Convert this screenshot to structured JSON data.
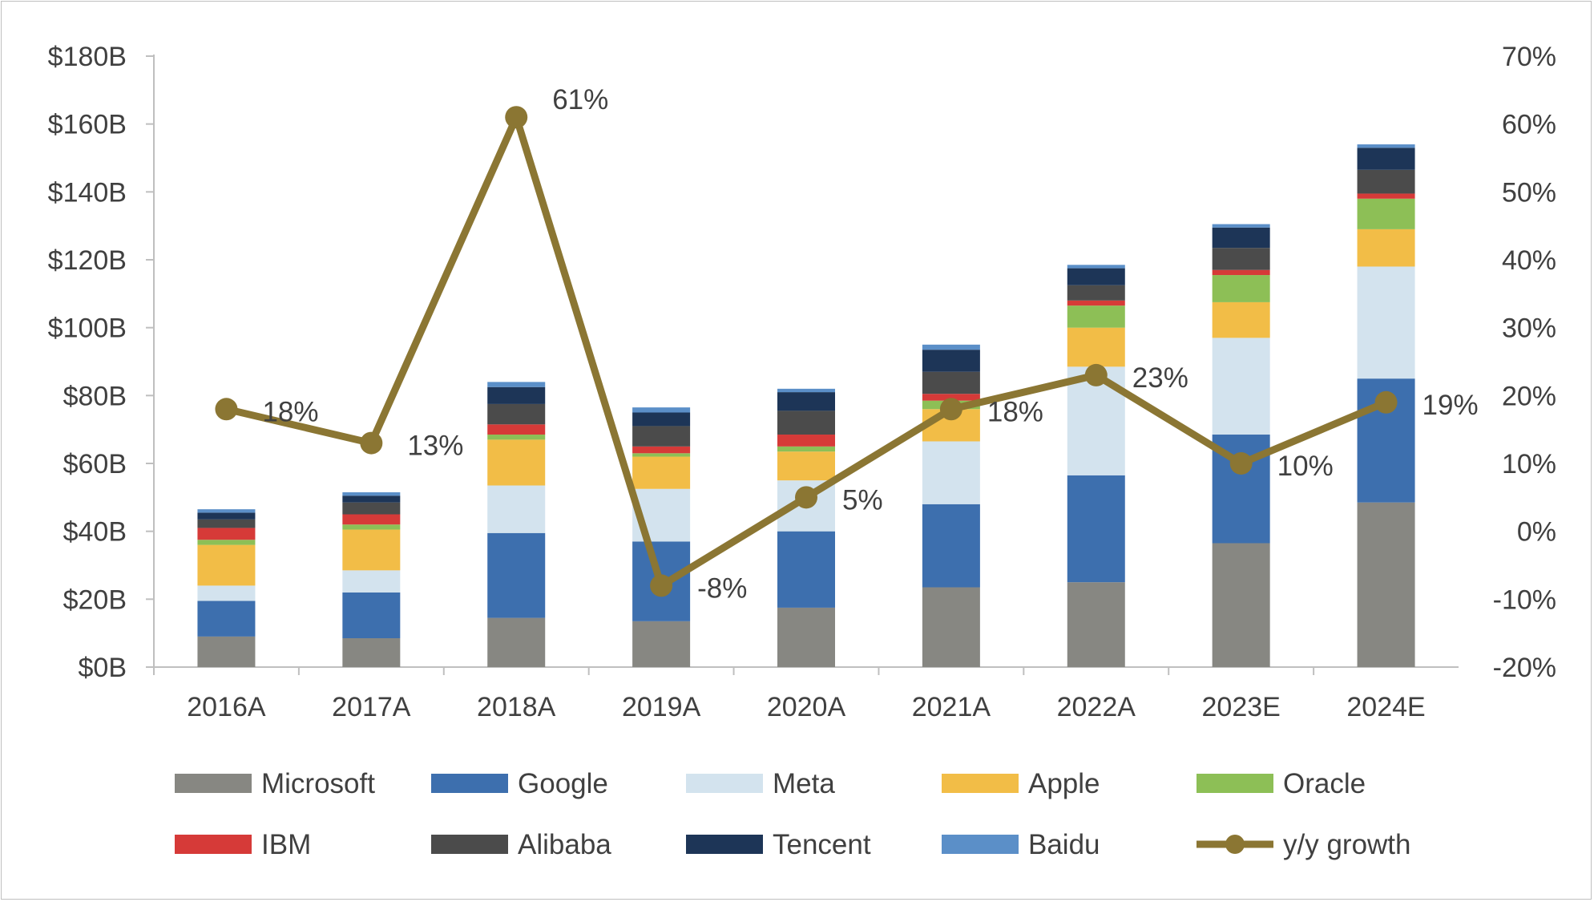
{
  "chart_data": {
    "type": "bar",
    "stacked": true,
    "title": "",
    "xlabel": "",
    "ylabel": "",
    "categories": [
      "2016A",
      "2017A",
      "2018A",
      "2019A",
      "2020A",
      "2021A",
      "2022A",
      "2023E",
      "2024E"
    ],
    "ylim": [
      0,
      180
    ],
    "y_ticks": [
      "$0B",
      "$20B",
      "$40B",
      "$60B",
      "$80B",
      "$100B",
      "$120B",
      "$140B",
      "$160B",
      "$180B"
    ],
    "y2lim": [
      -20,
      70
    ],
    "y2_ticks": [
      "-20%",
      "-10%",
      "0%",
      "10%",
      "20%",
      "30%",
      "40%",
      "50%",
      "60%",
      "70%"
    ],
    "series": [
      {
        "name": "Microsoft",
        "color": "#878782",
        "values": [
          9,
          8.5,
          14.5,
          13.5,
          17.5,
          23.5,
          25,
          36.5,
          48.5
        ]
      },
      {
        "name": "Google",
        "color": "#3d6fae",
        "values": [
          10.5,
          13.5,
          25,
          23.5,
          22.5,
          24.5,
          31.5,
          32,
          36.5
        ]
      },
      {
        "name": "Meta",
        "color": "#d3e3ee",
        "values": [
          4.5,
          6.5,
          14,
          15.5,
          15,
          18.5,
          32,
          28.5,
          33
        ]
      },
      {
        "name": "Apple",
        "color": "#f2bd47",
        "values": [
          12,
          12,
          13.5,
          9.5,
          8.5,
          9.5,
          11.5,
          10.5,
          11
        ]
      },
      {
        "name": "Oracle",
        "color": "#8dbf56",
        "values": [
          1.5,
          1.5,
          1.5,
          1,
          1.5,
          2.5,
          6.5,
          8,
          9
        ]
      },
      {
        "name": "IBM",
        "color": "#d63a38",
        "values": [
          3.5,
          3,
          3,
          2,
          3.5,
          2,
          1.5,
          1.5,
          1.5
        ]
      },
      {
        "name": "Alibaba",
        "color": "#4b4b4b",
        "values": [
          2.5,
          3.5,
          6,
          6,
          7,
          6.5,
          4.5,
          6.5,
          7
        ]
      },
      {
        "name": "Tencent",
        "color": "#1d3557",
        "values": [
          2,
          2,
          5,
          4,
          5.5,
          6.5,
          5,
          6,
          6.5
        ]
      },
      {
        "name": "Baidu",
        "color": "#5b8fc8",
        "values": [
          1,
          1,
          1.5,
          1.5,
          1,
          1.5,
          1,
          1,
          1
        ]
      }
    ],
    "line_series": {
      "name": "y/y growth",
      "color": "#8b7633",
      "axis": "right",
      "values": [
        18,
        13,
        61,
        -8,
        5,
        18,
        23,
        10,
        19
      ],
      "labels": [
        "18%",
        "13%",
        "61%",
        "-8%",
        "5%",
        "18%",
        "23%",
        "10%",
        "19%"
      ]
    },
    "grid": false,
    "legend_position": "bottom"
  }
}
